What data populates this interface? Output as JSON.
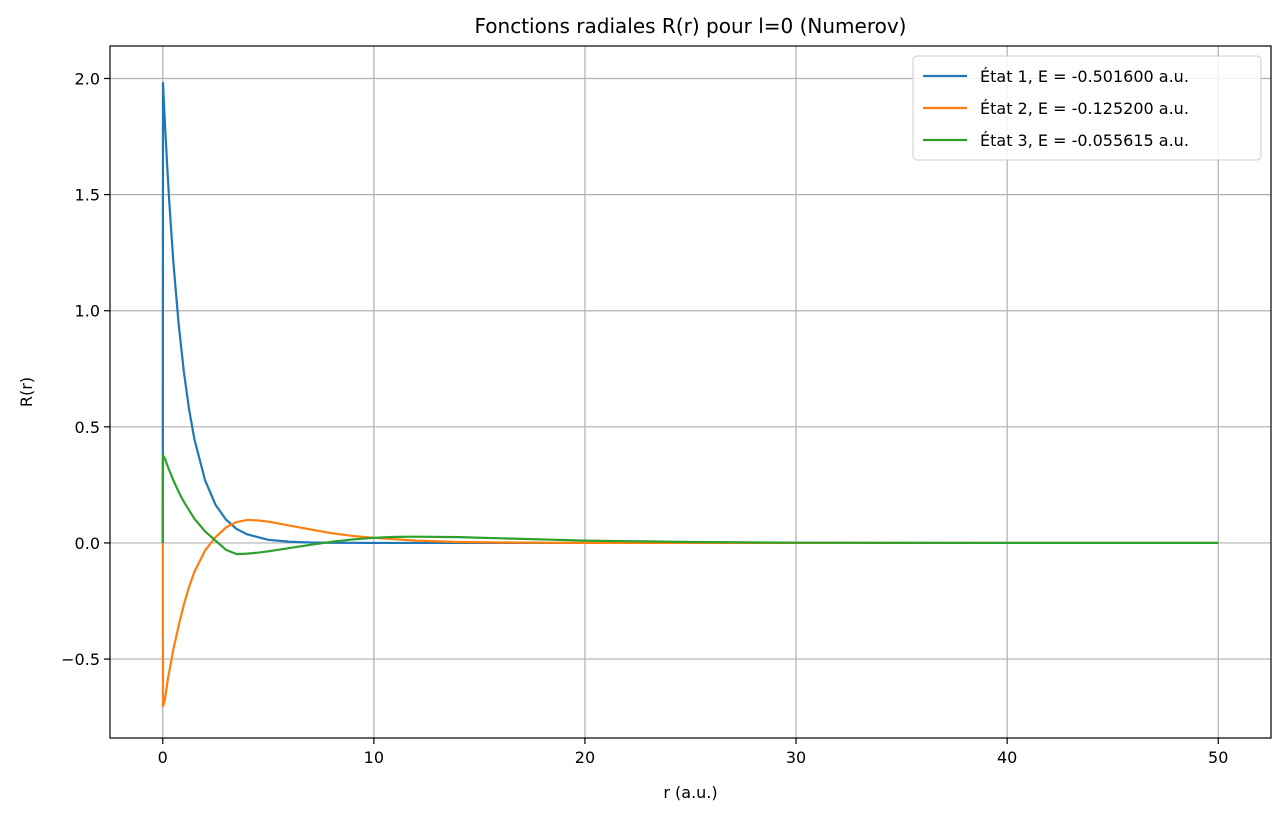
{
  "chart_data": {
    "type": "line",
    "title": "Fonctions radiales R(r) pour l=0 (Numerov)",
    "xlabel": "r (a.u.)",
    "ylabel": "R(r)",
    "xlim": [
      -2.5,
      52.5
    ],
    "ylim": [
      -0.84,
      2.14
    ],
    "xticks": [
      0,
      10,
      20,
      30,
      40,
      50
    ],
    "xtick_labels": [
      "0",
      "10",
      "20",
      "30",
      "40",
      "50"
    ],
    "yticks": [
      -0.5,
      0.0,
      0.5,
      1.0,
      1.5,
      2.0
    ],
    "ytick_labels": [
      "−0.5",
      "0.0",
      "0.5",
      "1.0",
      "1.5",
      "2.0"
    ],
    "grid": true,
    "legend_position": "top-right",
    "series": [
      {
        "name": "État 1, E = -0.501600 a.u.",
        "color": "#1f77b4",
        "x": [
          0,
          0.01,
          0.1,
          0.2,
          0.3,
          0.5,
          0.75,
          1.0,
          1.25,
          1.5,
          2.0,
          2.5,
          3.0,
          3.5,
          4.0,
          5.0,
          6.0,
          7.0,
          8.0,
          10.0,
          12.0,
          15.0,
          20.0,
          30.0,
          40.0,
          50.0
        ],
        "values": [
          0,
          1.98,
          1.81,
          1.64,
          1.48,
          1.21,
          0.945,
          0.736,
          0.573,
          0.446,
          0.271,
          0.164,
          0.1,
          0.06,
          0.037,
          0.0135,
          0.005,
          0.0018,
          0.0007,
          0.0001,
          0.0,
          0.0,
          0.0,
          0.0,
          0.0,
          0.0
        ]
      },
      {
        "name": "État 2, E = -0.125200 a.u.",
        "color": "#ff7f0e",
        "x": [
          0,
          0.01,
          0.1,
          0.25,
          0.5,
          0.75,
          1.0,
          1.25,
          1.5,
          2.0,
          2.5,
          3.0,
          3.5,
          4.0,
          4.5,
          5.0,
          6.0,
          7.0,
          8.0,
          9.0,
          10.0,
          12.0,
          14.0,
          16.0,
          20.0,
          25.0,
          30.0,
          40.0,
          50.0
        ],
        "values": [
          0,
          -0.703,
          -0.674,
          -0.582,
          -0.459,
          -0.357,
          -0.265,
          -0.188,
          -0.124,
          -0.033,
          0.025,
          0.067,
          0.09,
          0.099,
          0.097,
          0.092,
          0.075,
          0.058,
          0.042,
          0.03,
          0.022,
          0.01,
          0.004,
          0.002,
          0.0,
          0.0,
          0.0,
          0.0,
          0.0
        ]
      },
      {
        "name": "État 3, E = -0.055615 a.u.",
        "color": "#2ca02c",
        "x": [
          0,
          0.01,
          0.1,
          0.25,
          0.5,
          0.75,
          1.0,
          1.5,
          2.0,
          2.5,
          3.0,
          3.5,
          4.0,
          4.5,
          5.0,
          6.0,
          7.0,
          8.0,
          9.0,
          10.0,
          11.0,
          12.0,
          14.0,
          16.0,
          18.0,
          20.0,
          25.0,
          30.0,
          40.0,
          50.0
        ],
        "values": [
          0,
          0.378,
          0.363,
          0.326,
          0.27,
          0.22,
          0.177,
          0.104,
          0.05,
          0.01,
          -0.03,
          -0.048,
          -0.046,
          -0.042,
          -0.036,
          -0.022,
          -0.008,
          0.005,
          0.015,
          0.022,
          0.026,
          0.027,
          0.025,
          0.02,
          0.015,
          0.01,
          0.004,
          0.001,
          0.0,
          0.0
        ]
      }
    ]
  }
}
